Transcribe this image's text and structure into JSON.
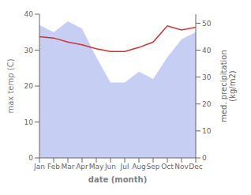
{
  "chart_data": {
    "type": "area",
    "categories": [
      "Jan",
      "Feb",
      "Mar",
      "Apr",
      "May",
      "Jun",
      "Jul",
      "Aug",
      "Sep",
      "Oct",
      "Nov",
      "Dec"
    ],
    "xlabel": "date (month)",
    "ylabel": "max temp (C)",
    "y2label": "med. precipitation\n(kg/m2)",
    "ylim": [
      0,
      40
    ],
    "yticks": [
      0,
      10,
      20,
      30,
      40
    ],
    "y2lim": [
      0,
      53.33
    ],
    "y2ticks": [
      0,
      10,
      20,
      30,
      40,
      50
    ],
    "series": [
      {
        "type": "area",
        "color": "#b3bef0",
        "values": [
          37,
          35,
          38,
          36,
          28,
          21,
          21,
          24,
          22,
          28,
          33,
          35
        ]
      },
      {
        "type": "line",
        "axis": "y2",
        "color": "#cc3333",
        "values": [
          45,
          44.5,
          43,
          42,
          40.5,
          39.5,
          39.5,
          41,
          43,
          49,
          47.5,
          48.5
        ]
      }
    ]
  }
}
